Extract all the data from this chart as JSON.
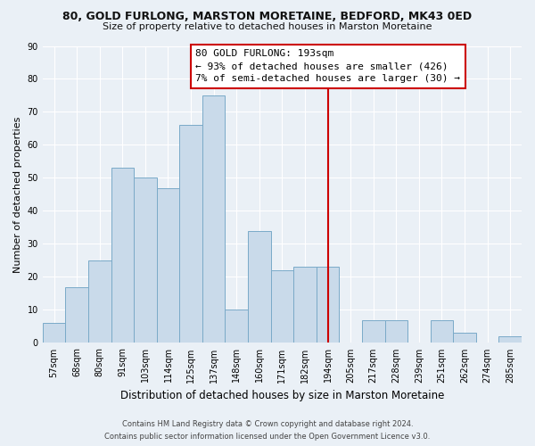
{
  "title1": "80, GOLD FURLONG, MARSTON MORETAINE, BEDFORD, MK43 0ED",
  "title2": "Size of property relative to detached houses in Marston Moretaine",
  "xlabel": "Distribution of detached houses by size in Marston Moretaine",
  "ylabel": "Number of detached properties",
  "bar_labels": [
    "57sqm",
    "68sqm",
    "80sqm",
    "91sqm",
    "103sqm",
    "114sqm",
    "125sqm",
    "137sqm",
    "148sqm",
    "160sqm",
    "171sqm",
    "182sqm",
    "194sqm",
    "205sqm",
    "217sqm",
    "228sqm",
    "239sqm",
    "251sqm",
    "262sqm",
    "274sqm",
    "285sqm"
  ],
  "bar_heights": [
    6,
    17,
    25,
    53,
    50,
    47,
    66,
    75,
    10,
    34,
    22,
    23,
    23,
    0,
    7,
    7,
    0,
    7,
    3,
    0,
    2
  ],
  "bar_color": "#c9daea",
  "bar_edge_color": "#7aaac8",
  "vline_x": 12.0,
  "vline_color": "#cc0000",
  "annotation_title": "80 GOLD FURLONG: 193sqm",
  "annotation_line1": "← 93% of detached houses are smaller (426)",
  "annotation_line2": "7% of semi-detached houses are larger (30) →",
  "ylim": [
    0,
    90
  ],
  "yticks": [
    0,
    10,
    20,
    30,
    40,
    50,
    60,
    70,
    80,
    90
  ],
  "footer1": "Contains HM Land Registry data © Crown copyright and database right 2024.",
  "footer2": "Contains public sector information licensed under the Open Government Licence v3.0.",
  "bg_color": "#eaf0f6",
  "grid_color": "#ffffff",
  "title1_fontsize": 9.0,
  "title2_fontsize": 8.0,
  "ylabel_fontsize": 8.0,
  "xlabel_fontsize": 8.5,
  "tick_fontsize": 7.0,
  "ann_fontsize": 8.0,
  "footer_fontsize": 6.0
}
